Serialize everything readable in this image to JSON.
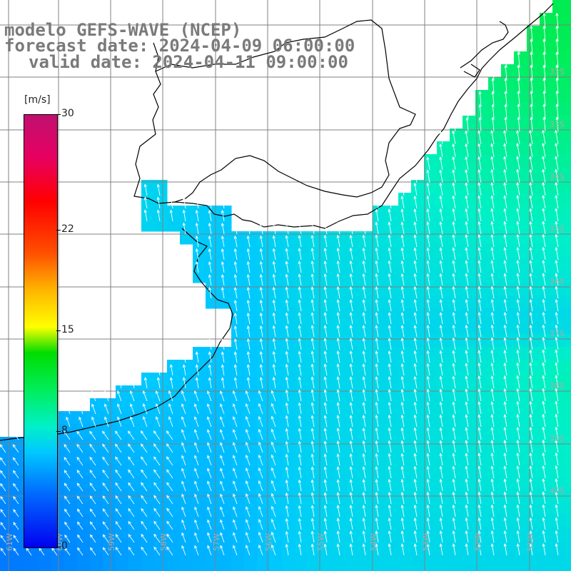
{
  "title": {
    "line1": "modelo GEFS-WAVE (NCEP)",
    "line2": "forecast date: 2024-04-09 06:00:00",
    "line3": "valid date: 2024-04-11 09:00:00"
  },
  "colorbar": {
    "unit": "[m/s]",
    "ticks": [
      {
        "value": 30,
        "label": "30"
      },
      {
        "value": 22,
        "label": "22"
      },
      {
        "value": 15,
        "label": "15"
      },
      {
        "value": 8,
        "label": "8"
      },
      {
        "value": 0,
        "label": "0"
      }
    ],
    "min": 0,
    "max": 30
  },
  "map": {
    "lon_labels": [
      "61W",
      "60W",
      "59W",
      "58W",
      "57W",
      "56W",
      "55W",
      "54W",
      "53W",
      "52W",
      "51W"
    ],
    "lat_labels": [
      "32S",
      "33S",
      "34S",
      "35S",
      "36S",
      "37S",
      "38S",
      "39S",
      "40S"
    ],
    "arrow_color": "#ffffff",
    "grid_color": "#808080",
    "coast_color": "#000000"
  }
}
